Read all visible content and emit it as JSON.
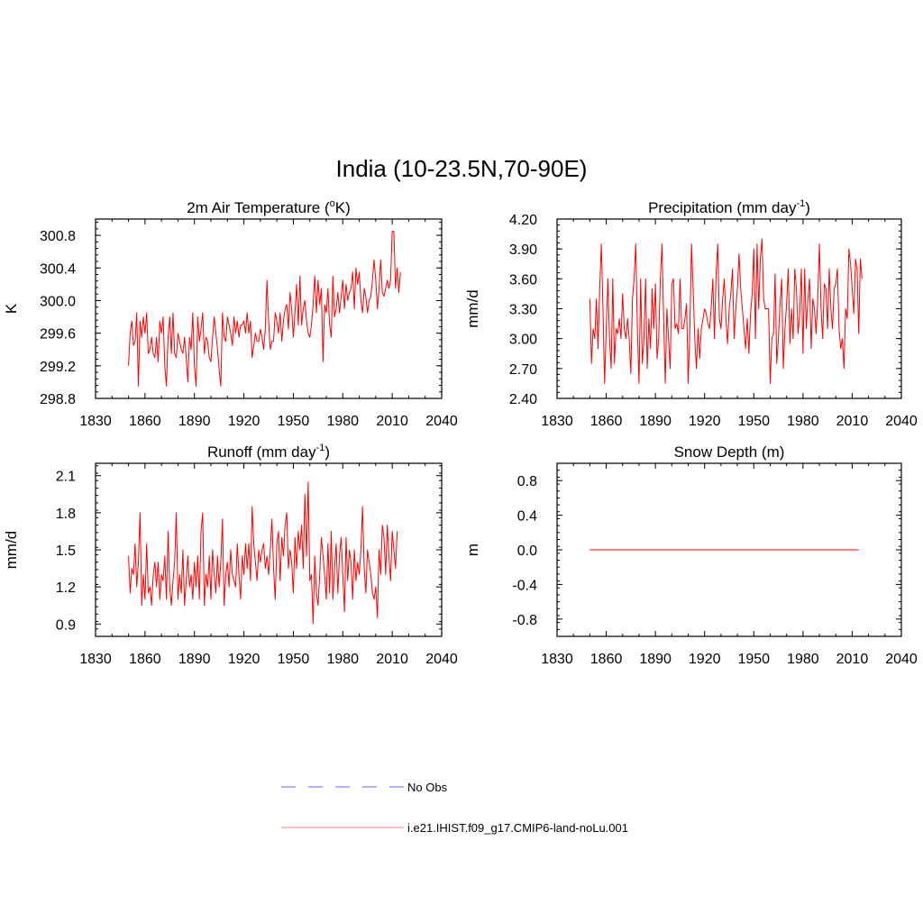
{
  "title": "India (10-23.5N,70-90E)",
  "colors": {
    "series": "#ff0000",
    "obs": "#9999ff",
    "model_legend": "#ffaaaa"
  },
  "legend": [
    {
      "label": "No Obs",
      "style": "dashed",
      "color": "#9999ff"
    },
    {
      "label": "i.e21.IHIST.f09_g17.CMIP6-land-noLu.001",
      "style": "solid",
      "color": "#ffaaaa"
    }
  ],
  "chart_data": [
    {
      "type": "line",
      "title_main": "2m Air Temperature (",
      "title_sup": "o",
      "title_tail": "K)",
      "ylabel": "K",
      "xlim": [
        1830,
        2040
      ],
      "ylim": [
        298.8,
        301.0
      ],
      "yticks": [
        298.8,
        299.2,
        299.6,
        300.0,
        300.4,
        300.8
      ],
      "ytick_labels": [
        "298.8",
        "299.2",
        "299.6",
        "300.0",
        "300.4",
        "300.8"
      ],
      "xticks": [
        1830,
        1860,
        1890,
        1920,
        1950,
        1980,
        2010,
        2040
      ],
      "x_start": 1850,
      "series": [
        {
          "values": [
            299.2,
            299.6,
            299.75,
            299.45,
            299.5,
            299.85,
            298.95,
            299.75,
            299.55,
            299.8,
            299.6,
            299.85,
            299.35,
            299.4,
            299.55,
            299.35,
            299.3,
            299.55,
            299.25,
            299.75,
            299.6,
            299.8,
            299.2,
            298.95,
            299.55,
            299.8,
            299.35,
            299.85,
            299.35,
            299.3,
            299.6,
            299.5,
            299.4,
            299.35,
            299.55,
            299.3,
            299.0,
            299.55,
            299.4,
            299.85,
            299.2,
            298.95,
            299.8,
            299.5,
            299.65,
            299.85,
            299.35,
            299.55,
            299.5,
            299.3,
            299.25,
            299.55,
            299.8,
            299.6,
            299.4,
            299.15,
            298.95,
            299.85,
            299.55,
            299.5,
            299.8,
            299.7,
            299.6,
            299.45,
            299.8,
            299.6,
            299.75,
            299.55,
            299.7,
            299.7,
            299.75,
            299.6,
            299.85,
            299.6,
            299.75,
            299.3,
            299.45,
            299.6,
            299.5,
            299.5,
            299.65,
            299.55,
            299.4,
            299.65,
            300.25,
            299.75,
            299.4,
            299.5,
            299.5,
            299.85,
            299.75,
            299.6,
            299.85,
            299.5,
            299.75,
            299.9,
            299.95,
            299.65,
            300.1,
            299.9,
            299.55,
            299.85,
            300.2,
            299.7,
            300.3,
            299.7,
            299.9,
            300.0,
            299.75,
            299.6,
            299.55,
            299.7,
            299.95,
            300.3,
            299.85,
            300.25,
            299.95,
            300.15,
            299.25,
            299.95,
            299.85,
            300.15,
            299.7,
            299.55,
            300.3,
            299.8,
            299.9,
            300.1,
            299.85,
            300.05,
            300.25,
            299.9,
            300.2,
            300.0,
            300.1,
            300.15,
            300.35,
            299.9,
            300.4,
            300.2,
            300.35,
            300.0,
            299.85,
            300.15,
            300.05,
            299.85,
            300.0,
            300.05,
            300.25,
            300.5,
            300.25,
            299.9,
            300.15,
            300.5,
            300.1,
            300.05,
            300.15,
            300.25,
            300.15,
            300.25,
            300.85,
            300.85,
            300.15,
            300.4,
            300.1,
            300.35
          ]
        }
      ]
    },
    {
      "type": "line",
      "title_main": "Precipitation (mm day",
      "title_sup": "-1",
      "title_tail": ")",
      "ylabel": "mm/d",
      "xlim": [
        1830,
        2040
      ],
      "ylim": [
        2.4,
        4.2
      ],
      "yticks": [
        2.4,
        2.7,
        3.0,
        3.3,
        3.6,
        3.9,
        4.2
      ],
      "ytick_labels": [
        "2.40",
        "2.70",
        "3.00",
        "3.30",
        "3.60",
        "3.90",
        "4.20"
      ],
      "xticks": [
        1830,
        1860,
        1890,
        1920,
        1950,
        1980,
        2010,
        2040
      ],
      "x_start": 1850,
      "series": [
        {
          "values": [
            3.4,
            2.75,
            3.1,
            3.0,
            3.4,
            2.9,
            3.5,
            3.95,
            3.3,
            2.55,
            3.1,
            3.6,
            3.0,
            2.7,
            3.6,
            2.75,
            3.1,
            3.05,
            3.2,
            3.0,
            3.45,
            3.1,
            3.0,
            3.2,
            3.0,
            2.65,
            3.4,
            3.6,
            3.95,
            3.1,
            2.55,
            3.6,
            2.75,
            3.0,
            3.6,
            2.7,
            3.2,
            2.9,
            3.5,
            3.1,
            3.55,
            2.8,
            3.0,
            3.6,
            3.95,
            3.2,
            2.55,
            3.3,
            3.0,
            2.7,
            3.55,
            3.6,
            3.1,
            3.15,
            3.05,
            3.6,
            3.1,
            3.1,
            3.2,
            3.35,
            2.55,
            3.1,
            3.95,
            3.5,
            3.0,
            2.7,
            3.1,
            2.8,
            3.1,
            3.2,
            3.3,
            3.25,
            3.15,
            3.1,
            3.3,
            3.6,
            3.0,
            3.65,
            3.95,
            3.2,
            3.1,
            3.4,
            3.6,
            3.2,
            2.95,
            3.3,
            3.45,
            3.7,
            3.0,
            3.3,
            3.5,
            3.85,
            3.5,
            3.3,
            3.1,
            2.9,
            3.2,
            2.85,
            3.25,
            3.45,
            3.9,
            3.0,
            3.95,
            3.3,
            3.8,
            4.0,
            3.4,
            3.3,
            3.3,
            3.3,
            2.55,
            3.0,
            3.05,
            3.65,
            2.75,
            3.0,
            3.35,
            3.6,
            2.7,
            3.1,
            3.35,
            3.7,
            2.95,
            3.3,
            3.0,
            3.7,
            3.5,
            3.05,
            3.25,
            3.7,
            2.85,
            3.7,
            3.1,
            3.4,
            3.6,
            2.9,
            3.4,
            3.3,
            3.05,
            3.4,
            3.95,
            3.3,
            3.0,
            3.55,
            3.5,
            3.1,
            3.7,
            3.3,
            3.1,
            3.5,
            3.55,
            3.7,
            3.1,
            2.9,
            3.0,
            2.7,
            3.3,
            3.2,
            3.9,
            3.75,
            3.5,
            3.25,
            3.8,
            3.7,
            3.05,
            3.8,
            3.6
          ]
        }
      ]
    },
    {
      "type": "line",
      "title_main": "Runoff (mm day",
      "title_sup": "-1",
      "title_tail": ")",
      "ylabel": "mm/d",
      "xlim": [
        1830,
        2040
      ],
      "ylim": [
        0.8,
        2.2
      ],
      "yticks": [
        0.9,
        1.2,
        1.5,
        1.8,
        2.1
      ],
      "ytick_labels": [
        "0.9",
        "1.2",
        "1.5",
        "1.8",
        "2.1"
      ],
      "xticks": [
        1830,
        1860,
        1890,
        1920,
        1950,
        1980,
        2010,
        2040
      ],
      "x_start": 1850,
      "series": [
        {
          "values": [
            1.45,
            1.15,
            1.35,
            1.3,
            1.55,
            1.2,
            1.4,
            1.8,
            1.05,
            1.3,
            1.1,
            1.55,
            1.15,
            1.2,
            1.05,
            1.3,
            1.4,
            1.2,
            1.4,
            1.1,
            1.3,
            1.25,
            1.45,
            1.1,
            1.65,
            1.2,
            1.05,
            1.25,
            1.4,
            1.8,
            1.1,
            1.3,
            1.15,
            1.5,
            1.05,
            1.25,
            1.45,
            1.2,
            1.3,
            1.1,
            1.4,
            1.2,
            1.45,
            1.1,
            1.65,
            1.8,
            1.05,
            1.3,
            1.2,
            1.45,
            1.1,
            1.5,
            1.3,
            1.15,
            1.45,
            1.2,
            1.4,
            1.75,
            1.05,
            1.3,
            1.4,
            1.2,
            1.5,
            1.3,
            1.25,
            1.2,
            1.55,
            1.3,
            1.1,
            1.45,
            1.3,
            1.55,
            1.35,
            1.55,
            1.25,
            1.85,
            1.55,
            1.4,
            1.25,
            1.5,
            1.4,
            1.5,
            1.55,
            1.35,
            1.45,
            1.3,
            1.5,
            1.75,
            1.35,
            1.1,
            1.55,
            1.65,
            1.25,
            1.6,
            1.45,
            1.7,
            1.8,
            1.35,
            1.5,
            1.4,
            1.15,
            1.6,
            1.35,
            1.65,
            1.5,
            1.7,
            1.35,
            1.95,
            1.45,
            2.05,
            1.25,
            1.3,
            0.9,
            1.45,
            1.15,
            1.05,
            1.3,
            1.6,
            1.45,
            1.3,
            1.1,
            1.55,
            1.15,
            1.65,
            1.1,
            1.35,
            1.55,
            1.15,
            1.45,
            1.6,
            1.3,
            1.0,
            1.6,
            1.25,
            1.5,
            1.4,
            1.1,
            1.5,
            1.25,
            1.4,
            1.3,
            1.5,
            1.85,
            1.35,
            1.15,
            1.5,
            1.4,
            1.3,
            1.15,
            1.1,
            1.2,
            0.95,
            1.5,
            1.3,
            1.7,
            1.6,
            1.3,
            1.7,
            1.45,
            1.25,
            1.65,
            1.5,
            1.35,
            1.65
          ]
        }
      ]
    },
    {
      "type": "line",
      "title_main": "Snow Depth (m)",
      "title_sup": "",
      "title_tail": "",
      "ylabel": "m",
      "xlim": [
        1830,
        2040
      ],
      "ylim": [
        -1.0,
        1.0
      ],
      "yticks": [
        -0.8,
        -0.4,
        0.0,
        0.4,
        0.8
      ],
      "ytick_labels": [
        "-0.8",
        "-0.4",
        "0.0",
        "0.4",
        "0.8"
      ],
      "xticks": [
        1830,
        1860,
        1890,
        1920,
        1950,
        1980,
        2010,
        2040
      ],
      "x_start": 1850,
      "series": [
        {
          "values": [
            0,
            0,
            0,
            0,
            0,
            0,
            0,
            0,
            0,
            0,
            0,
            0,
            0,
            0,
            0,
            0,
            0,
            0,
            0,
            0,
            0,
            0,
            0,
            0,
            0,
            0,
            0,
            0,
            0,
            0,
            0,
            0,
            0,
            0,
            0,
            0,
            0,
            0,
            0,
            0,
            0,
            0,
            0,
            0,
            0,
            0,
            0,
            0,
            0,
            0,
            0,
            0,
            0,
            0,
            0,
            0,
            0,
            0,
            0,
            0,
            0,
            0,
            0,
            0,
            0,
            0,
            0,
            0,
            0,
            0,
            0,
            0,
            0,
            0,
            0,
            0,
            0,
            0,
            0,
            0,
            0,
            0,
            0,
            0,
            0,
            0,
            0,
            0,
            0,
            0,
            0,
            0,
            0,
            0,
            0,
            0,
            0,
            0,
            0,
            0,
            0,
            0,
            0,
            0,
            0,
            0,
            0,
            0,
            0,
            0,
            0,
            0,
            0,
            0,
            0,
            0,
            0,
            0,
            0,
            0,
            0,
            0,
            0,
            0,
            0,
            0,
            0,
            0,
            0,
            0,
            0,
            0,
            0,
            0,
            0,
            0,
            0,
            0,
            0,
            0,
            0,
            0,
            0,
            0,
            0,
            0,
            0,
            0,
            0,
            0,
            0,
            0,
            0,
            0,
            0,
            0,
            0,
            0,
            0,
            0,
            0,
            0,
            0,
            0,
            0
          ]
        }
      ]
    }
  ]
}
